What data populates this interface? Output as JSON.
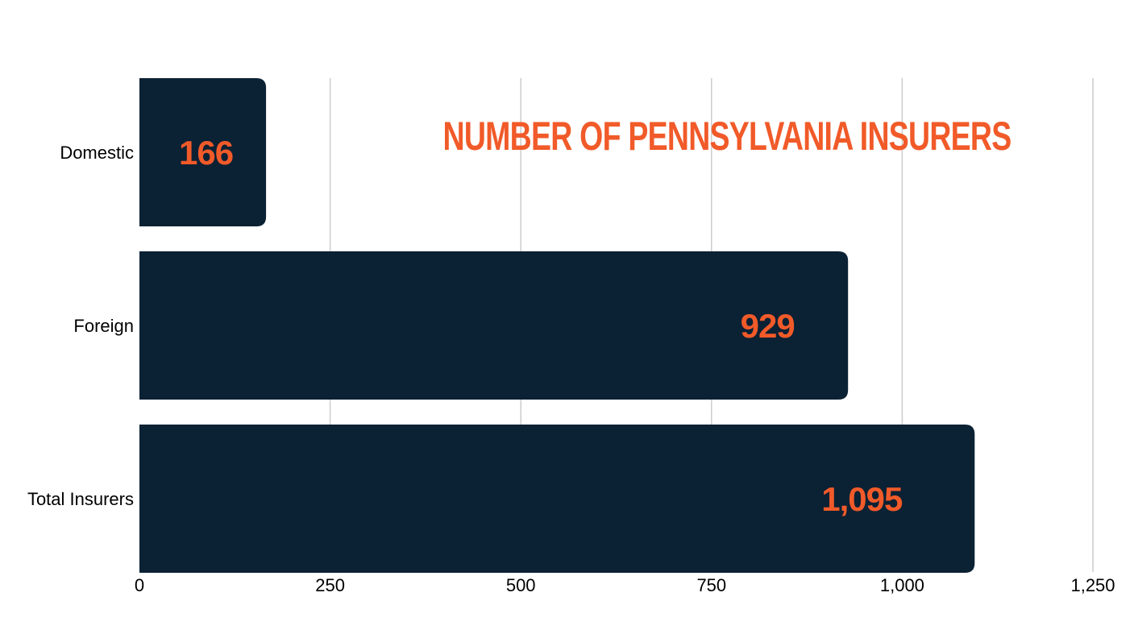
{
  "chart_data": {
    "type": "bar",
    "orientation": "horizontal",
    "title": "NUMBER OF PENNSYLVANIA INSURERS",
    "categories": [
      "Domestic",
      "Foreign",
      "Total Insurers"
    ],
    "values": [
      166,
      929,
      1095
    ],
    "data_labels": [
      "166",
      "929",
      "1,095"
    ],
    "xlim": [
      0,
      1250
    ],
    "x_ticks": [
      0,
      250,
      500,
      750,
      1000,
      1250
    ],
    "x_tick_labels": [
      "0",
      "250",
      "500",
      "750",
      "1,000",
      "1,250"
    ],
    "grid": "vertical",
    "legend": "none",
    "colors": {
      "bar": "#0b2134",
      "label": "#f15a29",
      "title": "#f15a29",
      "grid": "#cccccc",
      "text": "#000000"
    }
  }
}
